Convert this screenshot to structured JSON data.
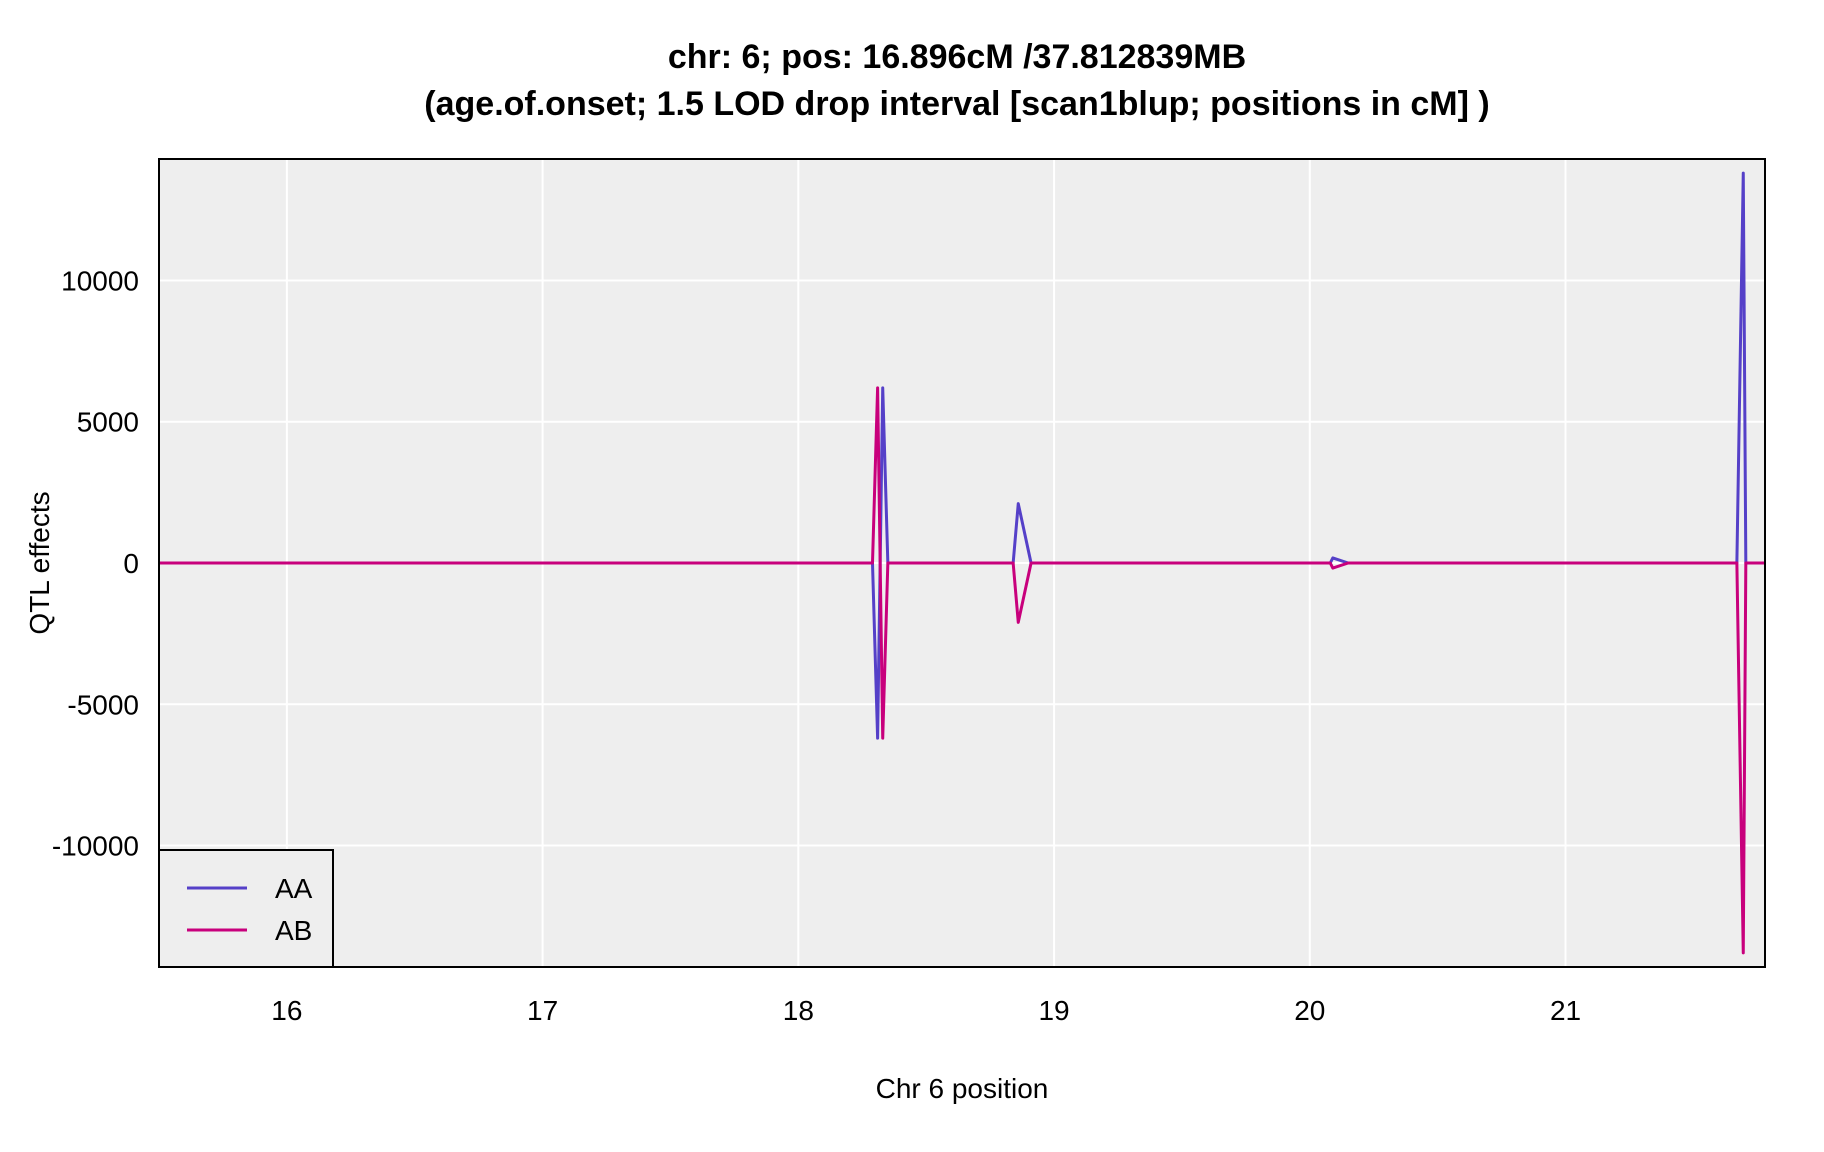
{
  "chart_data": {
    "type": "line",
    "title": "chr: 6; pos: 16.896cM /37.812839MB",
    "subtitle": "(age.of.onset; 1.5 LOD drop interval [scan1blup; positions in cM] )",
    "xlabel": "Chr 6 position",
    "ylabel": "QTL effects",
    "xlim": [
      15.5,
      21.78
    ],
    "ylim": [
      -14300,
      14300
    ],
    "x_ticks": [
      16,
      17,
      18,
      19,
      20,
      21
    ],
    "y_ticks": [
      -10000,
      -5000,
      0,
      5000,
      10000
    ],
    "grid": true,
    "legend": "bottom-left",
    "panel_background": "#eeeeee",
    "grid_color": "#ffffff",
    "series": [
      {
        "name": "AA",
        "color": "#5540c8",
        "x": [
          15.5,
          18.29,
          18.31,
          18.33,
          18.35,
          18.84,
          18.86,
          18.91,
          20.03,
          20.08,
          20.09,
          20.15,
          21.67,
          21.695,
          21.705,
          21.72,
          21.78
        ],
        "y": [
          0,
          0,
          -6200,
          6200,
          0,
          0,
          2100,
          0,
          0,
          0,
          180,
          0,
          0,
          13800,
          0,
          0,
          0
        ]
      },
      {
        "name": "AB",
        "color": "#c8007c",
        "x": [
          15.5,
          18.29,
          18.31,
          18.33,
          18.35,
          18.84,
          18.86,
          18.91,
          20.03,
          20.08,
          20.09,
          20.15,
          21.67,
          21.695,
          21.705,
          21.72,
          21.78
        ],
        "y": [
          0,
          0,
          6200,
          -6200,
          0,
          0,
          -2100,
          0,
          0,
          0,
          -180,
          0,
          0,
          -13800,
          0,
          0,
          0
        ]
      }
    ]
  }
}
